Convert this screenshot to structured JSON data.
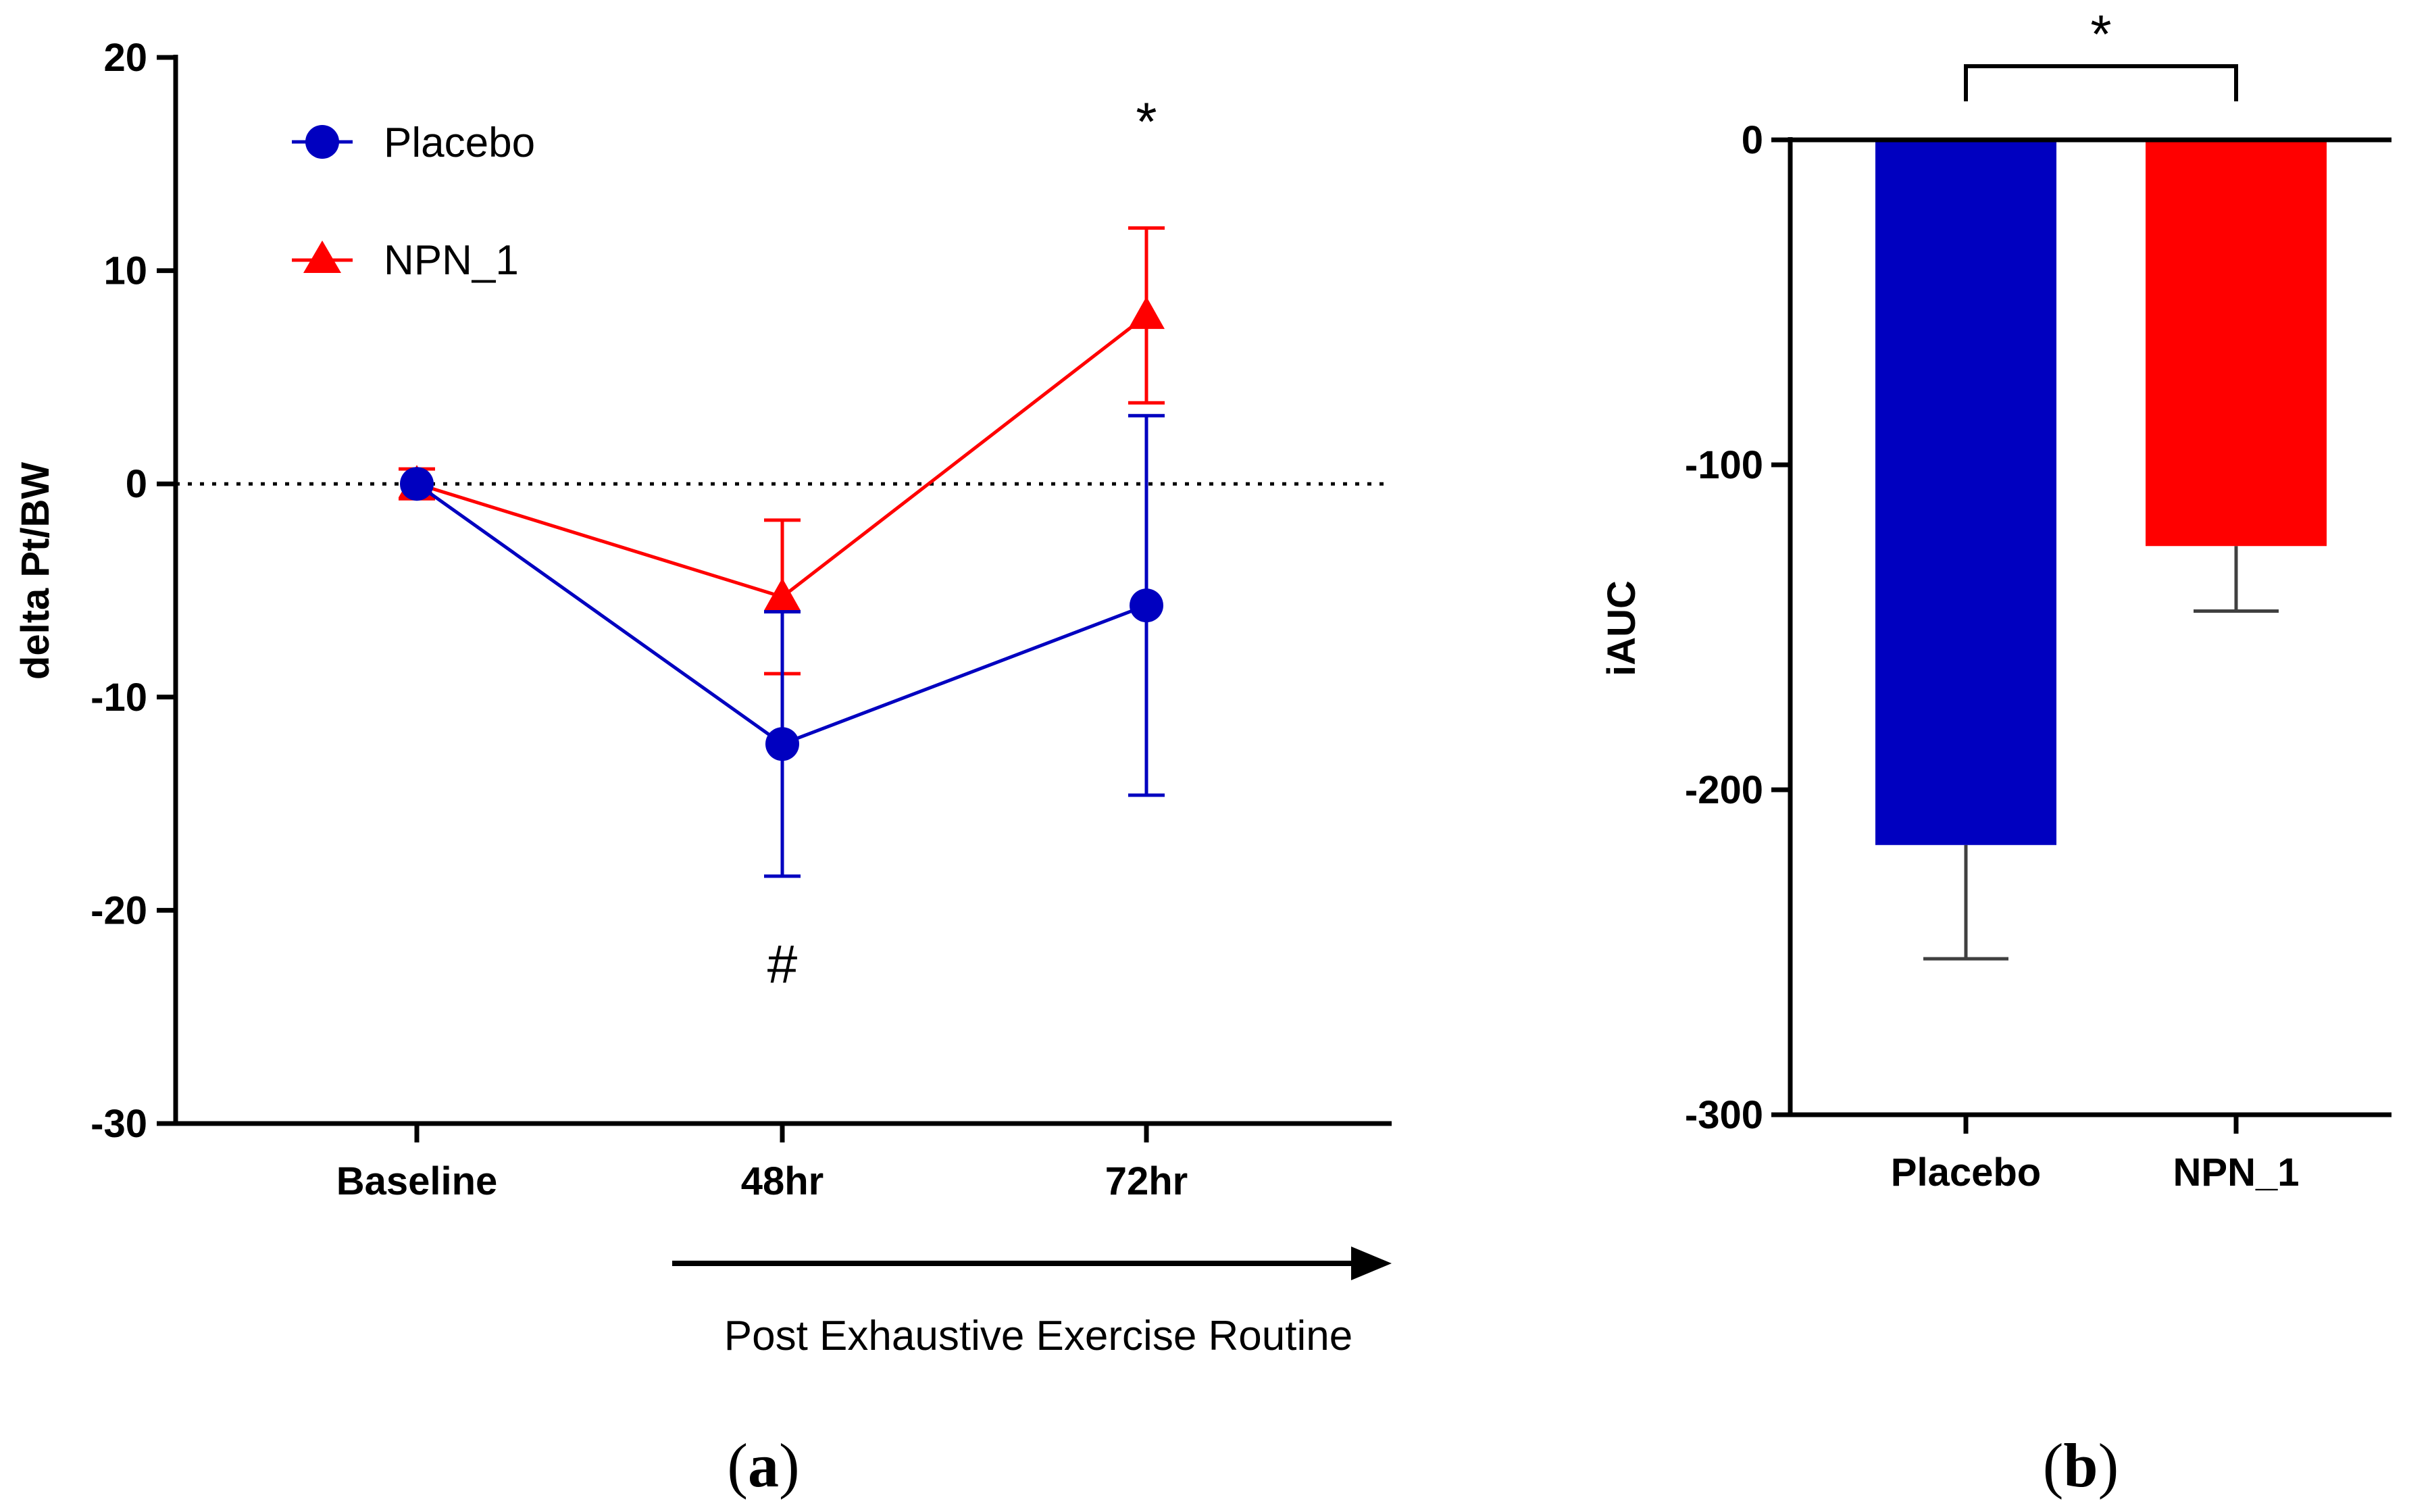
{
  "colors": {
    "placebo": "#0000c0",
    "npn": "#ff0000",
    "axis": "#000000",
    "err_bar_b": "#404040"
  },
  "chart_data": [
    {
      "type": "line",
      "panel_label": "a",
      "ylabel": "delta Pt/BW",
      "xlabel": "Post Exhaustive Exercise Routine",
      "categories": [
        "Baseline",
        "48hr",
        "72hr"
      ],
      "ylim": [
        -30,
        20
      ],
      "yticks": [
        20,
        10,
        0,
        -10,
        -20,
        -30
      ],
      "reference_line": 0,
      "series": [
        {
          "name": "Placebo",
          "marker": "circle",
          "values": [
            0,
            -12.2,
            -5.7
          ],
          "errors": [
            0,
            6.2,
            8.9
          ]
        },
        {
          "name": "NPN_1",
          "marker": "triangle",
          "values": [
            0,
            -5.3,
            7.9
          ],
          "errors": [
            0.7,
            3.6,
            4.1
          ]
        }
      ],
      "annotations": [
        {
          "text": "*",
          "category": "72hr",
          "y": 17
        },
        {
          "text": "#",
          "category": "48hr",
          "y": -22.5
        }
      ]
    },
    {
      "type": "bar",
      "panel_label": "b",
      "ylabel": "iAUC",
      "categories": [
        "Placebo",
        "NPN_1"
      ],
      "values": [
        -217,
        -125
      ],
      "errors": [
        35,
        20
      ],
      "ylim": [
        -300,
        0
      ],
      "yticks": [
        0,
        -100,
        -200,
        -300
      ],
      "significance": {
        "text": "*",
        "between": [
          "Placebo",
          "NPN_1"
        ]
      }
    }
  ]
}
